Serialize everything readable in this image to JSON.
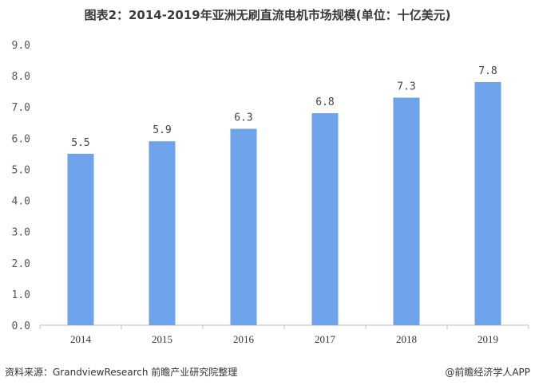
{
  "chart_data": {
    "type": "bar",
    "title": "图表2：2014-2019年亚洲无刷直流电机市场规模(单位：十亿美元)",
    "categories": [
      "2014",
      "2015",
      "2016",
      "2017",
      "2018",
      "2019"
    ],
    "values": [
      5.5,
      5.9,
      6.3,
      6.8,
      7.3,
      7.8
    ],
    "value_labels": [
      "5.5",
      "5.9",
      "6.3",
      "6.8",
      "7.3",
      "7.8"
    ],
    "yticks": [
      "0.0",
      "1.0",
      "2.0",
      "3.0",
      "4.0",
      "5.0",
      "6.0",
      "7.0",
      "8.0",
      "9.0"
    ],
    "ylim": [
      0,
      9
    ],
    "xlabel": "",
    "ylabel": "",
    "grid": false,
    "colors": {
      "bar": "#6ea2ea",
      "axis": "#bfbfbf"
    }
  },
  "footer": {
    "source": "资料来源：GrandviewResearch 前瞻产业研究院整理",
    "credit": "@前瞻经济学人APP"
  }
}
